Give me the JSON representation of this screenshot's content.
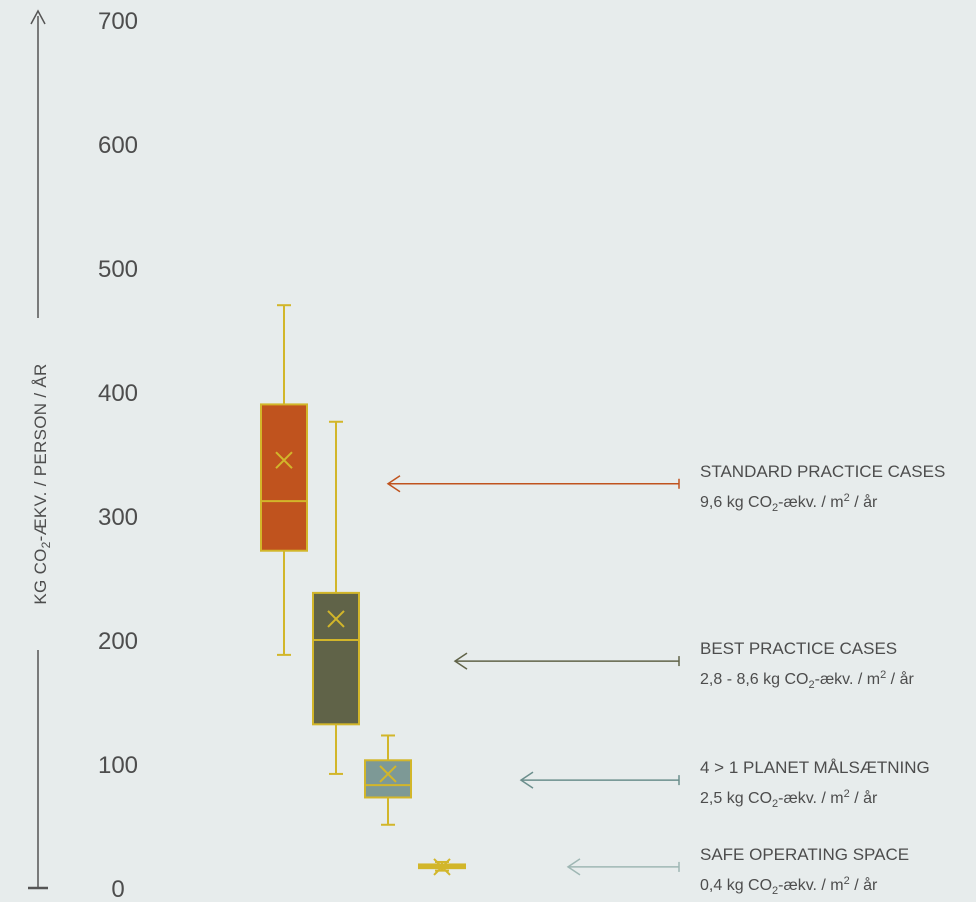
{
  "chart_data": {
    "type": "box",
    "ylim": [
      0,
      700
    ],
    "y_ticks": [
      "0",
      "100",
      "200",
      "300",
      "400",
      "500",
      "600",
      "700"
    ],
    "y_tick_values": [
      0,
      100,
      200,
      300,
      400,
      500,
      600,
      700
    ],
    "ylabel": {
      "pre": "KG CO",
      "sub": "2",
      "post": "-ÆKV. / PERSON / ÅR"
    },
    "grid": false,
    "series": [
      {
        "min": 188,
        "q1": 272,
        "median": 312,
        "q3": 390,
        "max": 470,
        "mean": 345,
        "color": "#c0531e"
      },
      {
        "min": 92,
        "q1": 132,
        "median": 200,
        "q3": 238,
        "max": 376,
        "mean": 217,
        "color": "#606348"
      },
      {
        "min": 51,
        "q1": 73,
        "median": 83,
        "q3": 103,
        "max": 123,
        "mean": 92,
        "color": "#7d9996"
      },
      {
        "min": 14,
        "q1": 16,
        "median": 17,
        "q3": 19,
        "max": 21,
        "mean": 17,
        "color": "#d2b62a"
      }
    ],
    "annotations": [
      {
        "title": "STANDARD PRACTICE CASES",
        "sub_pre": "9,6 kg CO",
        "sub_sub": "2",
        "sub_mid": "-ækv. / m",
        "sub_sup": "2",
        "sub_post": " / år",
        "arrow_y": 326,
        "color": "#c0531e"
      },
      {
        "title": "BEST PRACTICE CASES",
        "sub_pre": "2,8 - 8,6 kg CO",
        "sub_sub": "2",
        "sub_mid": "-ækv. / m",
        "sub_sup": "2",
        "sub_post": " / år",
        "arrow_y": 183,
        "color": "#606348"
      },
      {
        "title": "4 > 1 PLANET MÅLSÆTNING",
        "sub_pre": "2,5 kg CO",
        "sub_sub": "2",
        "sub_mid": "-ækv. / m",
        "sub_sup": "2",
        "sub_post": " / år",
        "arrow_y": 87,
        "color": "#6b8e8c"
      },
      {
        "title": "SAFE OPERATING SPACE",
        "sub_pre": "0,4 kg CO",
        "sub_sub": "2",
        "sub_mid": "-ækv. / m",
        "sub_sup": "2",
        "sub_post": " / år",
        "arrow_y": 17,
        "color": "#9fb7b4"
      }
    ],
    "whisker_color": "#d2b62a"
  }
}
